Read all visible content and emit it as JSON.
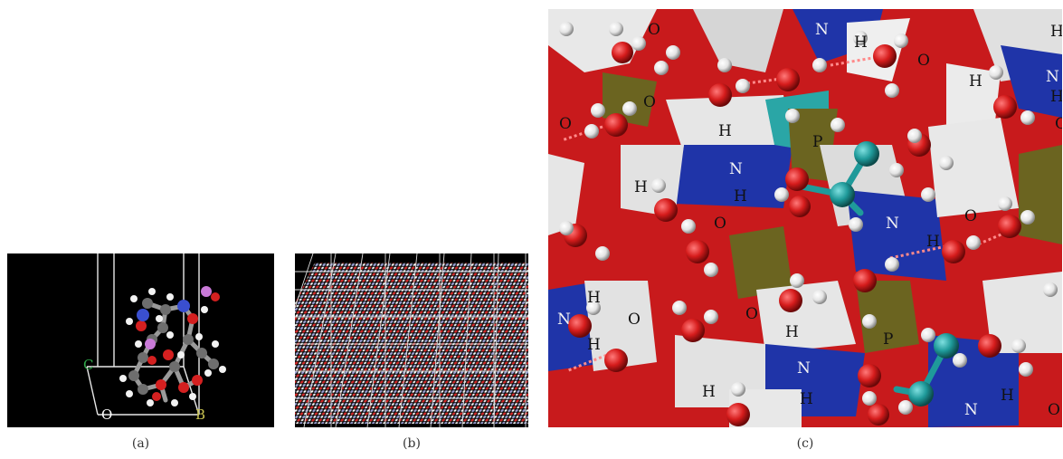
{
  "captions": {
    "a": "(a)",
    "b": "(b)",
    "c": "(c)"
  },
  "panel_a": {
    "axis_labels": {
      "c": "C",
      "o": "O",
      "b": "B"
    },
    "colors": {
      "background": "#000000",
      "c_axis": "#2fa84a",
      "b_axis": "#c8c250",
      "o_axis": "#ffffff",
      "cell_edges": "#e8e8e8"
    }
  },
  "panel_b": {
    "colors": {
      "background": "#000000",
      "grid": "#dcdcdc"
    }
  },
  "panel_c": {
    "atom_labels": {
      "O1": "O",
      "O2": "O",
      "O3": "O",
      "O4": "O",
      "O5": "O",
      "O6": "O",
      "O7": "O",
      "O8": "O",
      "O9": "O",
      "O10": "O",
      "N1": "N",
      "N2": "N",
      "N3": "N",
      "N4": "N",
      "N5": "N",
      "N6": "N",
      "N7": "N",
      "H1": "H",
      "H2": "H",
      "H3": "H",
      "H4": "H",
      "H5": "H",
      "H6": "H",
      "H7": "H",
      "H8": "H",
      "H9": "H",
      "H10": "H",
      "H11": "H",
      "H12": "H",
      "H13": "H",
      "H14": "H",
      "P1": "P",
      "P2": "P"
    },
    "colors": {
      "oxygen_surface": "#d41e20",
      "nitrogen_surface": "#1f34a8",
      "hydrogen_surface": "#e6e6e6",
      "carbon_surface": "#2aa6a6",
      "phosphorus_surface": "#6b6420",
      "hbond": "#ff7a7a"
    }
  }
}
